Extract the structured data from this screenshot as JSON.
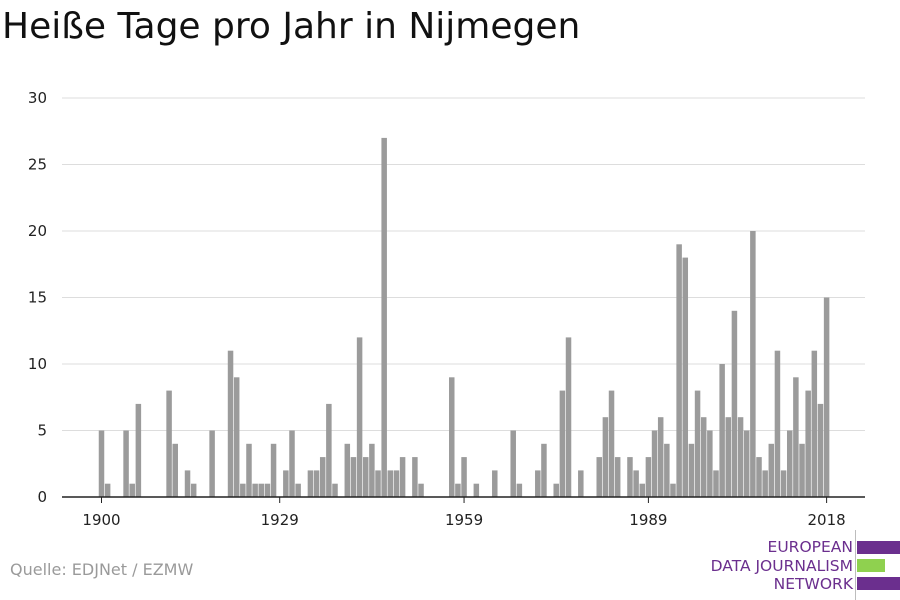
{
  "header": {
    "title": "Heiße Tage pro Jahr in Nijmegen"
  },
  "footer": {
    "source": "Quelle: EDJNet / EZMW"
  },
  "logo": {
    "lines": [
      "EUROPEAN",
      "DATA JOURNALISM",
      "NETWORK"
    ],
    "colors": [
      "#6b2f8e",
      "#8fd14f",
      "#6b2f8e"
    ]
  },
  "chart_data": {
    "type": "bar",
    "title": "Heiße Tage pro Jahr in Nijmegen",
    "xlabel": "",
    "ylabel": "",
    "x_ticks": [
      "1900",
      "1929",
      "1959",
      "1989",
      "2018"
    ],
    "y_ticks": [
      "0",
      "5",
      "10",
      "15",
      "20",
      "25",
      "30"
    ],
    "ylim": [
      0,
      30
    ],
    "grid": true,
    "bar_color": "#9b9b9b",
    "categories": [
      1900,
      1901,
      1902,
      1903,
      1904,
      1905,
      1906,
      1907,
      1908,
      1909,
      1910,
      1911,
      1912,
      1913,
      1914,
      1915,
      1916,
      1917,
      1918,
      1919,
      1920,
      1921,
      1922,
      1923,
      1924,
      1925,
      1926,
      1927,
      1928,
      1929,
      1930,
      1931,
      1932,
      1933,
      1934,
      1935,
      1936,
      1937,
      1938,
      1939,
      1940,
      1941,
      1942,
      1943,
      1944,
      1945,
      1946,
      1947,
      1948,
      1949,
      1950,
      1951,
      1952,
      1953,
      1954,
      1955,
      1956,
      1957,
      1958,
      1959,
      1960,
      1961,
      1962,
      1963,
      1964,
      1965,
      1966,
      1967,
      1968,
      1969,
      1970,
      1971,
      1972,
      1973,
      1974,
      1975,
      1976,
      1977,
      1978,
      1979,
      1980,
      1981,
      1982,
      1983,
      1984,
      1985,
      1986,
      1987,
      1988,
      1989,
      1990,
      1991,
      1992,
      1993,
      1994,
      1995,
      1996,
      1997,
      1998,
      1999,
      2000,
      2001,
      2002,
      2003,
      2004,
      2005,
      2006,
      2007,
      2008,
      2009,
      2010,
      2011,
      2012,
      2013,
      2014,
      2015,
      2016,
      2017,
      2018
    ],
    "values": [
      5,
      1,
      0,
      0,
      5,
      1,
      7,
      0,
      0,
      0,
      0,
      8,
      4,
      0,
      2,
      1,
      0,
      0,
      5,
      0,
      0,
      11,
      9,
      1,
      4,
      1,
      1,
      1,
      4,
      0,
      2,
      5,
      1,
      0,
      2,
      2,
      3,
      7,
      1,
      0,
      4,
      3,
      12,
      3,
      4,
      2,
      27,
      2,
      2,
      3,
      0,
      3,
      1,
      0,
      0,
      0,
      0,
      9,
      1,
      3,
      0,
      1,
      0,
      0,
      2,
      0,
      0,
      5,
      1,
      0,
      0,
      2,
      4,
      0,
      1,
      8,
      12,
      0,
      2,
      0,
      0,
      3,
      6,
      8,
      3,
      0,
      3,
      2,
      1,
      3,
      5,
      6,
      4,
      1,
      19,
      18,
      4,
      8,
      6,
      5,
      2,
      10,
      6,
      14,
      6,
      5,
      20,
      3,
      2,
      4,
      11,
      2,
      5,
      9,
      4,
      8,
      11,
      7,
      15
    ]
  }
}
